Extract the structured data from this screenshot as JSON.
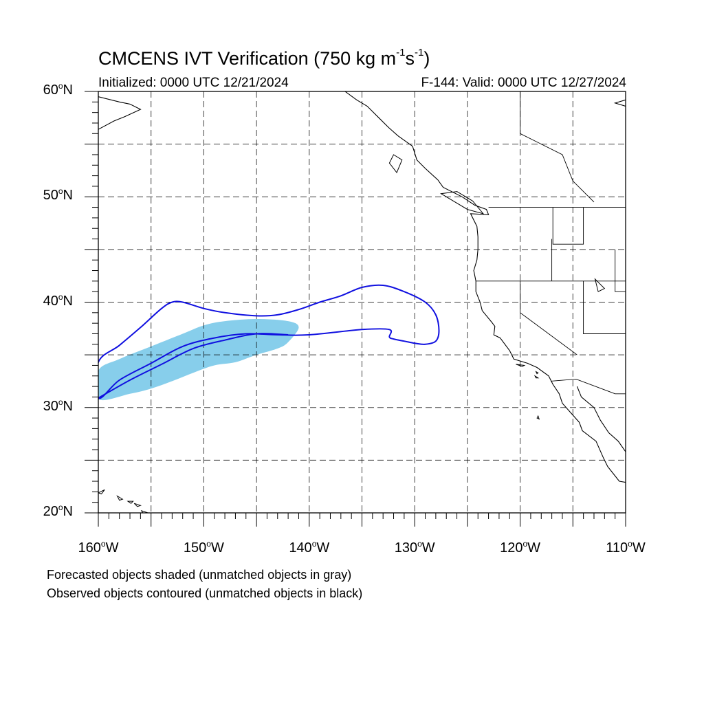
{
  "title": {
    "main_prefix": "CMCENS IVT Verification (750 kg m",
    "sup1": "-1",
    "middle": "s",
    "sup2": "-1",
    "suffix": ")"
  },
  "subtitle": {
    "initialized": "Initialized: 0000 UTC 12/21/2024",
    "valid": "F-144: Valid: 0000 UTC 12/27/2024"
  },
  "map": {
    "lon_range": [
      -160,
      -110
    ],
    "lat_range": [
      20,
      60
    ],
    "lat_labels": [
      {
        "value": 60,
        "text": "60",
        "suffix": "N"
      },
      {
        "value": 50,
        "text": "50",
        "suffix": "N"
      },
      {
        "value": 40,
        "text": "40",
        "suffix": "N"
      },
      {
        "value": 30,
        "text": "30",
        "suffix": "N"
      },
      {
        "value": 20,
        "text": "20",
        "suffix": "N"
      }
    ],
    "lon_labels": [
      {
        "value": -160,
        "text": "160",
        "suffix": "W"
      },
      {
        "value": -150,
        "text": "150",
        "suffix": "W"
      },
      {
        "value": -140,
        "text": "140",
        "suffix": "W"
      },
      {
        "value": -130,
        "text": "130",
        "suffix": "W"
      },
      {
        "value": -120,
        "text": "120",
        "suffix": "W"
      },
      {
        "value": -110,
        "text": "110",
        "suffix": "W"
      }
    ],
    "grid_lons": [
      -155,
      -150,
      -145,
      -140,
      -135,
      -130,
      -125,
      -120,
      -115
    ],
    "grid_lats": [
      25,
      30,
      35,
      40,
      45,
      50,
      55
    ],
    "forecast_color": "#87ceeb",
    "observed_color": "#1010e0",
    "forecast_object": [
      [
        -160,
        33.5
      ],
      [
        -158,
        34.6
      ],
      [
        -155,
        35.8
      ],
      [
        -152,
        37.0
      ],
      [
        -150,
        37.8
      ],
      [
        -148,
        38.2
      ],
      [
        -145,
        38.4
      ],
      [
        -142,
        38.2
      ],
      [
        -141,
        37.6
      ],
      [
        -142,
        36.2
      ],
      [
        -143,
        35.6
      ],
      [
        -145,
        35.0
      ],
      [
        -147,
        34.3
      ],
      [
        -149,
        34.0
      ],
      [
        -151,
        33.3
      ],
      [
        -153,
        32.5
      ],
      [
        -155,
        31.8
      ],
      [
        -157,
        31.3
      ],
      [
        -160,
        30.8
      ]
    ],
    "observed_object": [
      [
        -160,
        34.3
      ],
      [
        -158,
        35.9
      ],
      [
        -156,
        37.6
      ],
      [
        -154,
        39.4
      ],
      [
        -153,
        40.0
      ],
      [
        -152,
        40.0
      ],
      [
        -150,
        39.4
      ],
      [
        -148,
        39.0
      ],
      [
        -145,
        38.7
      ],
      [
        -143,
        38.8
      ],
      [
        -141,
        39.3
      ],
      [
        -139,
        40.0
      ],
      [
        -137,
        40.6
      ],
      [
        -135,
        41.4
      ],
      [
        -133,
        41.6
      ],
      [
        -131,
        41.0
      ],
      [
        -129,
        40.0
      ],
      [
        -128,
        38.8
      ],
      [
        -127.7,
        37.3
      ],
      [
        -128,
        36.3
      ],
      [
        -129,
        36.0
      ],
      [
        -130,
        36.1
      ],
      [
        -131,
        36.3
      ],
      [
        -132,
        36.5
      ],
      [
        -132.4,
        36.7
      ],
      [
        -132.4,
        37.4
      ],
      [
        -135,
        37.4
      ],
      [
        -140,
        36.9
      ],
      [
        -143,
        36.9
      ],
      [
        -146,
        37.0
      ],
      [
        -149,
        36.6
      ],
      [
        -152,
        35.8
      ],
      [
        -155,
        34.2
      ],
      [
        -158,
        32.6
      ],
      [
        -160,
        30.9
      ]
    ],
    "observed_axis": [
      [
        -160,
        30.9
      ],
      [
        -157,
        32.6
      ],
      [
        -154,
        34.1
      ],
      [
        -151,
        35.6
      ],
      [
        -148,
        36.4
      ],
      [
        -145,
        37.0
      ],
      [
        -142,
        36.9
      ]
    ],
    "coastlines": [
      [
        [
          -136.6,
          60
        ],
        [
          -135.5,
          59.2
        ],
        [
          -134.5,
          58.6
        ],
        [
          -133.5,
          57.6
        ],
        [
          -132.5,
          56.6
        ],
        [
          -131.6,
          55.8
        ],
        [
          -130.2,
          54.8
        ],
        [
          -129.8,
          53.5
        ],
        [
          -129,
          52.7
        ],
        [
          -127.8,
          51.6
        ],
        [
          -127.3,
          50.9
        ],
        [
          -125.5,
          50.0
        ],
        [
          -124.3,
          49.2
        ],
        [
          -123.2,
          48.8
        ],
        [
          -123,
          48.3
        ],
        [
          -124.7,
          48.4
        ],
        [
          -124.1,
          47.2
        ],
        [
          -124,
          46.2
        ],
        [
          -124,
          45.0
        ],
        [
          -124.1,
          44.0
        ],
        [
          -124.4,
          43.0
        ],
        [
          -124.2,
          42.0
        ],
        [
          -124.2,
          41.0
        ],
        [
          -123.8,
          40.0
        ],
        [
          -123.6,
          39.2
        ],
        [
          -122.7,
          38.1
        ],
        [
          -122.4,
          37.7
        ],
        [
          -122.5,
          36.9
        ],
        [
          -121.9,
          36.6
        ],
        [
          -121.0,
          35.4
        ],
        [
          -120.6,
          34.6
        ],
        [
          -119.3,
          34.2
        ],
        [
          -118.4,
          33.8
        ],
        [
          -117.3,
          33.0
        ],
        [
          -116.9,
          32.2
        ],
        [
          -116.3,
          31.3
        ],
        [
          -116,
          30.4
        ],
        [
          -115.2,
          29.5
        ],
        [
          -114.4,
          28.6
        ],
        [
          -114.1,
          27.8
        ],
        [
          -112.8,
          26.8
        ],
        [
          -112.1,
          25.2
        ],
        [
          -111.7,
          24.4
        ],
        [
          -110.6,
          23.0
        ],
        [
          -110,
          22.9
        ]
      ],
      [
        [
          -114.6,
          32
        ],
        [
          -114.2,
          31.0
        ],
        [
          -113,
          30.0
        ],
        [
          -112.4,
          28.8
        ],
        [
          -111.6,
          27.6
        ],
        [
          -110.7,
          26.8
        ],
        [
          -110,
          25.8
        ]
      ],
      [
        [
          -160,
          59.5
        ],
        [
          -158,
          59.0
        ],
        [
          -157,
          58.8
        ],
        [
          -156,
          58.3
        ],
        [
          -157.5,
          57.6
        ],
        [
          -158.5,
          57.2
        ],
        [
          -160,
          56.4
        ]
      ],
      [
        [
          -110,
          59.2
        ],
        [
          -111,
          58.9
        ],
        [
          -110,
          58.6
        ]
      ]
    ],
    "borders": [
      [
        [
          -123.0,
          49.0
        ],
        [
          -110,
          49.0
        ]
      ],
      [
        [
          -124.2,
          42.0
        ],
        [
          -110,
          42.0
        ]
      ],
      [
        [
          -120,
          42.0
        ],
        [
          -120,
          39.0
        ],
        [
          -114.6,
          35.0
        ]
      ],
      [
        [
          -117.1,
          32.5
        ],
        [
          -114.7,
          32.7
        ],
        [
          -111,
          31.3
        ],
        [
          -110,
          31.3
        ]
      ],
      [
        [
          -111,
          45
        ],
        [
          -111,
          41
        ],
        [
          -110,
          41
        ]
      ],
      [
        [
          -114,
          49
        ],
        [
          -114,
          45.5
        ],
        [
          -116.9,
          45.5
        ],
        [
          -116.9,
          49
        ]
      ],
      [
        [
          -117,
          46
        ],
        [
          -117,
          42
        ]
      ],
      [
        [
          -114,
          42
        ],
        [
          -114,
          37
        ],
        [
          -110,
          37
        ]
      ],
      [
        [
          -120,
          60
        ],
        [
          -120,
          56
        ],
        [
          -118,
          55
        ],
        [
          -116,
          54
        ],
        [
          -115,
          51.5
        ],
        [
          -114,
          50.5
        ],
        [
          -113,
          49.5
        ]
      ]
    ],
    "islands": [
      [
        [
          -160,
          21.9
        ],
        [
          -159.4,
          22.2
        ],
        [
          -159.7,
          21.8
        ],
        [
          -160,
          21.9
        ]
      ],
      [
        [
          -158.2,
          21.6
        ],
        [
          -157.7,
          21.3
        ],
        [
          -158,
          21.2
        ],
        [
          -158.2,
          21.6
        ]
      ],
      [
        [
          -157.2,
          21.1
        ],
        [
          -156.7,
          21.1
        ],
        [
          -156.9,
          20.9
        ],
        [
          -157.2,
          21.1
        ]
      ],
      [
        [
          -156.6,
          20.9
        ],
        [
          -156.0,
          20.7
        ],
        [
          -156.3,
          20.6
        ],
        [
          -156.6,
          20.9
        ]
      ],
      [
        [
          -155.9,
          20.2
        ],
        [
          -155.0,
          19.9
        ],
        [
          -155.5,
          19.5
        ],
        [
          -155.9,
          20.2
        ]
      ],
      [
        [
          -132,
          54
        ],
        [
          -131.2,
          53.5
        ],
        [
          -131.7,
          52.3
        ],
        [
          -132.4,
          53.2
        ],
        [
          -132,
          54
        ]
      ],
      [
        [
          -126,
          50.5
        ],
        [
          -124.5,
          49.6
        ],
        [
          -123.5,
          48.4
        ],
        [
          -125,
          48.8
        ],
        [
          -127.5,
          50.3
        ],
        [
          -126,
          50.5
        ]
      ],
      [
        [
          -120.4,
          34.1
        ],
        [
          -119.6,
          34.0
        ],
        [
          -119.8,
          33.9
        ],
        [
          -120.4,
          34.1
        ]
      ],
      [
        [
          -118.5,
          33.4
        ],
        [
          -118.3,
          33.3
        ],
        [
          -118.4,
          33.2
        ],
        [
          -118.5,
          33.4
        ]
      ],
      [
        [
          -118.6,
          33.0
        ],
        [
          -118.3,
          32.8
        ],
        [
          -118.5,
          32.8
        ],
        [
          -118.6,
          33.0
        ]
      ],
      [
        [
          -118.3,
          29.2
        ],
        [
          -118.2,
          28.9
        ],
        [
          -118.4,
          29.0
        ],
        [
          -118.3,
          29.2
        ]
      ],
      [
        [
          -112.9,
          42.2
        ],
        [
          -112.0,
          41.3
        ],
        [
          -112.6,
          41.0
        ],
        [
          -112.9,
          42.2
        ]
      ]
    ]
  },
  "notes": {
    "line1": "Forecasted objects shaded (unmatched objects in gray)",
    "line2": "Observed objects contoured (unmatched objects in black)"
  }
}
